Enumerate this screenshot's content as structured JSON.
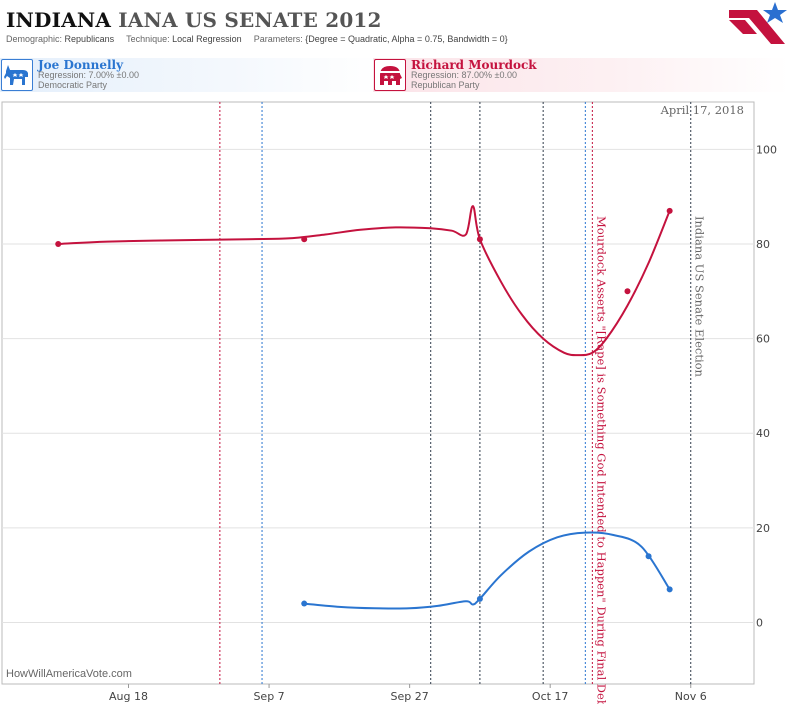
{
  "header": {
    "title_state": "INDIANA",
    "title_rest": "IANA US SENATE 2012",
    "demographic_key": "Demographic:",
    "demographic_value": "Republicans",
    "technique_key": "Technique:",
    "technique_value": "Local Regression",
    "parameters_key": "Parameters:",
    "parameters_value": "{Degree = Quadratic, Alpha = 0.75, Bandwidth = 0}"
  },
  "candidates": [
    {
      "name": "Joe Donnelly",
      "regression": "Regression: 7.00% ±0.00",
      "party": "Democratic Party",
      "color": "#2a75d0",
      "icon": "donkey-icon"
    },
    {
      "name": "Richard Mourdock",
      "regression": "Regression: 87.00% ±0.00",
      "party": "Republican Party",
      "color": "#c4123e",
      "icon": "elephant-icon"
    }
  ],
  "attribution": "HowWillAmericaVote.com",
  "chart_data": {
    "type": "line",
    "date_label": "April 17, 2018",
    "x_ticks": [
      "Aug 18",
      "Sep 7",
      "Sep 27",
      "Oct 17",
      "Nov 6"
    ],
    "y_ticks": [
      0,
      20,
      40,
      60,
      80,
      100
    ],
    "ylim": [
      -13,
      110
    ],
    "xlim": [
      "2012-07-31",
      "2012-11-15"
    ],
    "grid_y": true,
    "series": [
      {
        "name": "Richard Mourdock",
        "color": "#c4123e",
        "points": [
          [
            "2012-08-08",
            80
          ],
          [
            "2012-09-12",
            81
          ],
          [
            "2012-10-07",
            81
          ],
          [
            "2012-10-28",
            70
          ],
          [
            "2012-11-03",
            87
          ]
        ],
        "curve": [
          [
            "2012-08-08",
            80
          ],
          [
            "2012-08-15",
            80.5
          ],
          [
            "2012-08-25",
            80.8
          ],
          [
            "2012-09-04",
            81
          ],
          [
            "2012-09-10",
            81.2
          ],
          [
            "2012-09-15",
            82
          ],
          [
            "2012-09-20",
            83
          ],
          [
            "2012-09-25",
            83.5
          ],
          [
            "2012-09-30",
            83.3
          ],
          [
            "2012-10-03",
            82.8
          ],
          [
            "2012-10-05",
            82
          ],
          [
            "2012-10-06",
            88
          ],
          [
            "2012-10-07",
            81
          ],
          [
            "2012-10-10",
            72
          ],
          [
            "2012-10-13",
            65
          ],
          [
            "2012-10-16",
            60
          ],
          [
            "2012-10-19",
            57
          ],
          [
            "2012-10-21",
            56.5
          ],
          [
            "2012-10-23",
            57
          ],
          [
            "2012-10-25",
            60
          ],
          [
            "2012-10-28",
            67
          ],
          [
            "2012-10-31",
            76
          ],
          [
            "2012-11-03",
            87
          ]
        ]
      },
      {
        "name": "Joe Donnelly",
        "color": "#2a75d0",
        "points": [
          [
            "2012-09-12",
            4
          ],
          [
            "2012-10-07",
            5
          ],
          [
            "2012-10-31",
            14
          ],
          [
            "2012-11-03",
            7
          ]
        ],
        "curve": [
          [
            "2012-09-12",
            4
          ],
          [
            "2012-09-17",
            3.3
          ],
          [
            "2012-09-22",
            3
          ],
          [
            "2012-09-27",
            3
          ],
          [
            "2012-10-01",
            3.5
          ],
          [
            "2012-10-05",
            4.5
          ],
          [
            "2012-10-06",
            3.8
          ],
          [
            "2012-10-07",
            5
          ],
          [
            "2012-10-10",
            10
          ],
          [
            "2012-10-14",
            15
          ],
          [
            "2012-10-18",
            18
          ],
          [
            "2012-10-22",
            19
          ],
          [
            "2012-10-26",
            18.5
          ],
          [
            "2012-10-30",
            16
          ],
          [
            "2012-11-03",
            7
          ]
        ]
      }
    ],
    "event_lines": [
      {
        "date": "2012-08-31",
        "color": "#c4123e"
      },
      {
        "date": "2012-09-06",
        "color": "#2a75d0"
      },
      {
        "date": "2012-09-30",
        "color": "#2f3b4a"
      },
      {
        "date": "2012-10-07",
        "color": "#2f3b4a"
      },
      {
        "date": "2012-10-16",
        "color": "#2f3b4a"
      },
      {
        "date": "2012-10-22",
        "color": "#2a75d0"
      },
      {
        "date": "2012-10-23",
        "color": "#c4123e",
        "label": "Mourdock Asserts \"[Rape] is Something God Intended to Happen\" During Final Debate"
      },
      {
        "date": "2012-11-06",
        "color": "#2f3b4a",
        "label": "Indiana US Senate Election",
        "label_color": "#666666"
      }
    ]
  }
}
